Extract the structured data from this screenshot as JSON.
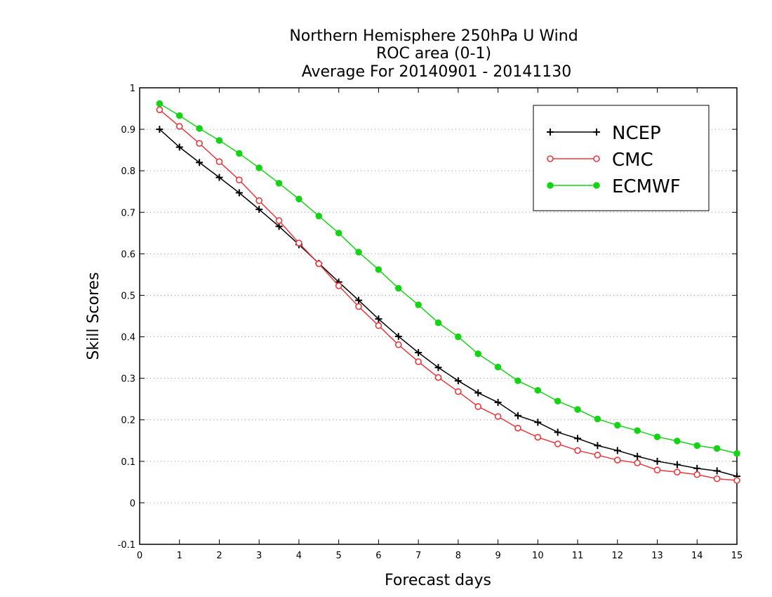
{
  "chart_data": {
    "type": "line",
    "title_lines": [
      "Northern Hemisphere 250hPa U Wind",
      "ROC area (0-1)",
      "Average For 20140901 - 20141130"
    ],
    "xlabel": "Forecast days",
    "ylabel": "Skill Scores",
    "xlim": [
      0,
      15
    ],
    "ylim": [
      -0.1,
      1
    ],
    "x_ticks": [
      0,
      1,
      2,
      3,
      4,
      5,
      6,
      7,
      8,
      9,
      10,
      11,
      12,
      13,
      14,
      15
    ],
    "x_tick_labels": [
      "0",
      "1",
      "2",
      "3",
      "4",
      "5",
      "6",
      "7",
      "8",
      "9",
      "10",
      "11",
      "12",
      "13",
      "14",
      "15"
    ],
    "y_ticks": [
      -0.1,
      0,
      0.1,
      0.2,
      0.3,
      0.4,
      0.5,
      0.6,
      0.7,
      0.8,
      0.9,
      1
    ],
    "y_tick_labels": [
      "-0.1",
      "0",
      "0.1",
      "0.2",
      "0.3",
      "0.4",
      "0.5",
      "0.6",
      "0.7",
      "0.8",
      "0.9",
      "1"
    ],
    "grid": "horizontal dotted",
    "legend_position": "top-right",
    "x": [
      0.5,
      1.0,
      1.5,
      2.0,
      2.5,
      3.0,
      3.5,
      4.0,
      4.5,
      5.0,
      5.5,
      6.0,
      6.5,
      7.0,
      7.5,
      8.0,
      8.5,
      9.0,
      9.5,
      10.0,
      10.5,
      11.0,
      11.5,
      12.0,
      12.5,
      13.0,
      13.5,
      14.0,
      14.5,
      15.0
    ],
    "series": [
      {
        "name": "NCEP",
        "color": "#000000",
        "marker": "plus",
        "values": [
          0.9,
          0.857,
          0.82,
          0.784,
          0.747,
          0.707,
          0.666,
          0.622,
          0.577,
          0.532,
          0.488,
          0.443,
          0.401,
          0.362,
          0.326,
          0.294,
          0.265,
          0.242,
          0.21,
          0.194,
          0.17,
          0.155,
          0.138,
          0.126,
          0.112,
          0.1,
          0.092,
          0.083,
          0.077,
          0.064
        ]
      },
      {
        "name": "CMC",
        "color": "#e8383d",
        "marker": "open-circle",
        "values": [
          0.947,
          0.907,
          0.866,
          0.822,
          0.778,
          0.728,
          0.68,
          0.626,
          0.576,
          0.523,
          0.473,
          0.427,
          0.381,
          0.34,
          0.302,
          0.268,
          0.232,
          0.208,
          0.18,
          0.158,
          0.142,
          0.126,
          0.115,
          0.103,
          0.096,
          0.079,
          0.074,
          0.068,
          0.058,
          0.054
        ]
      },
      {
        "name": "ECMWF",
        "color": "#15d315",
        "marker": "filled-circle",
        "values": [
          0.962,
          0.933,
          0.902,
          0.873,
          0.842,
          0.807,
          0.77,
          0.732,
          0.691,
          0.65,
          0.604,
          0.562,
          0.517,
          0.477,
          0.434,
          0.4,
          0.359,
          0.327,
          0.294,
          0.271,
          0.245,
          0.225,
          0.202,
          0.187,
          0.174,
          0.159,
          0.149,
          0.138,
          0.131,
          0.119
        ]
      }
    ]
  }
}
